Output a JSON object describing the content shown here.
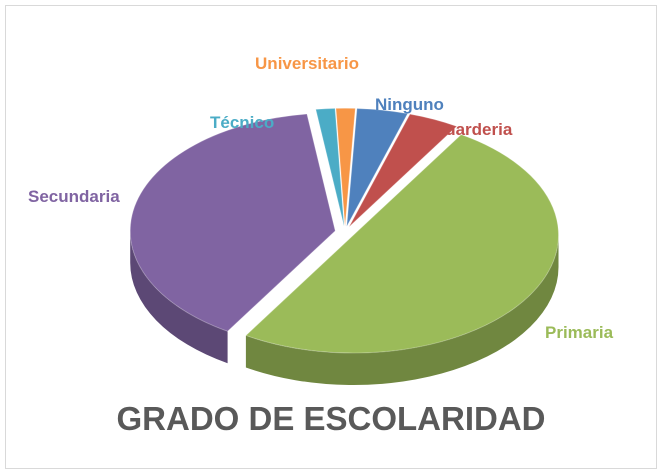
{
  "chart_data": {
    "type": "pie",
    "title": "GRADO DE ESCOLARIDAD",
    "categories": [
      "Ninguno",
      "Guarderia",
      "Primaria",
      "Secundaria",
      "Técnico",
      "Universitario"
    ],
    "values": [
      4,
      4,
      50,
      39,
      1.5,
      1.5
    ],
    "colors": [
      "#4f81bd",
      "#c0504d",
      "#9bbb59",
      "#8064a2",
      "#4bacc6",
      "#f79646"
    ]
  }
}
